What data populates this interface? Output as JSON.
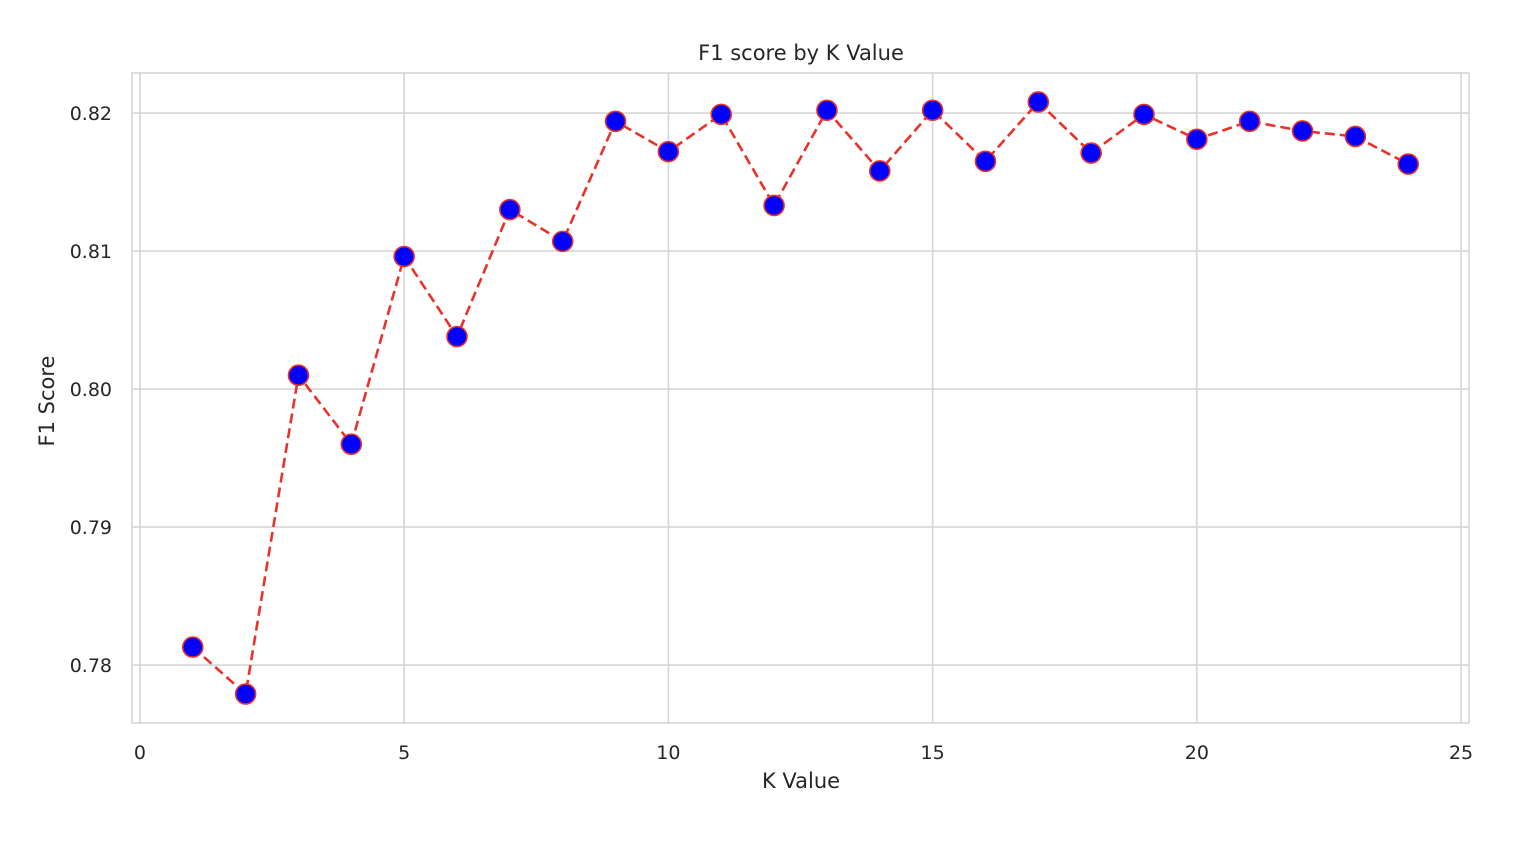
{
  "chart_data": {
    "type": "line",
    "title": "F1 score by K Value",
    "xlabel": "K Value",
    "ylabel": "F1 Score",
    "xlim": [
      -0.15,
      25.15
    ],
    "ylim": [
      0.7758,
      0.8229
    ],
    "xticks": [
      0,
      5,
      10,
      15,
      20,
      25
    ],
    "xtick_labels": [
      "0",
      "5",
      "10",
      "15",
      "20",
      "25"
    ],
    "yticks": [
      0.78,
      0.79,
      0.8,
      0.81,
      0.82
    ],
    "ytick_labels": [
      "0.78",
      "0.79",
      "0.80",
      "0.81",
      "0.82"
    ],
    "grid": true,
    "legend": false,
    "line_color": "#e8322a",
    "line_style": "dashed",
    "marker_color": "#0000ff",
    "marker_edge_color": "#e8322a",
    "series": [
      {
        "x": [
          1,
          2,
          3,
          4,
          5,
          6,
          7,
          8,
          9,
          10,
          11,
          12,
          13,
          14,
          15,
          16,
          17,
          18,
          19,
          20,
          21,
          22,
          23,
          24
        ],
        "values": [
          0.7813,
          0.7779,
          0.801,
          0.796,
          0.8096,
          0.8038,
          0.813,
          0.8107,
          0.8194,
          0.8172,
          0.8199,
          0.8133,
          0.8202,
          0.8158,
          0.8202,
          0.8165,
          0.8208,
          0.8171,
          0.8199,
          0.8181,
          0.8194,
          0.8187,
          0.8183,
          0.8163
        ]
      }
    ]
  }
}
